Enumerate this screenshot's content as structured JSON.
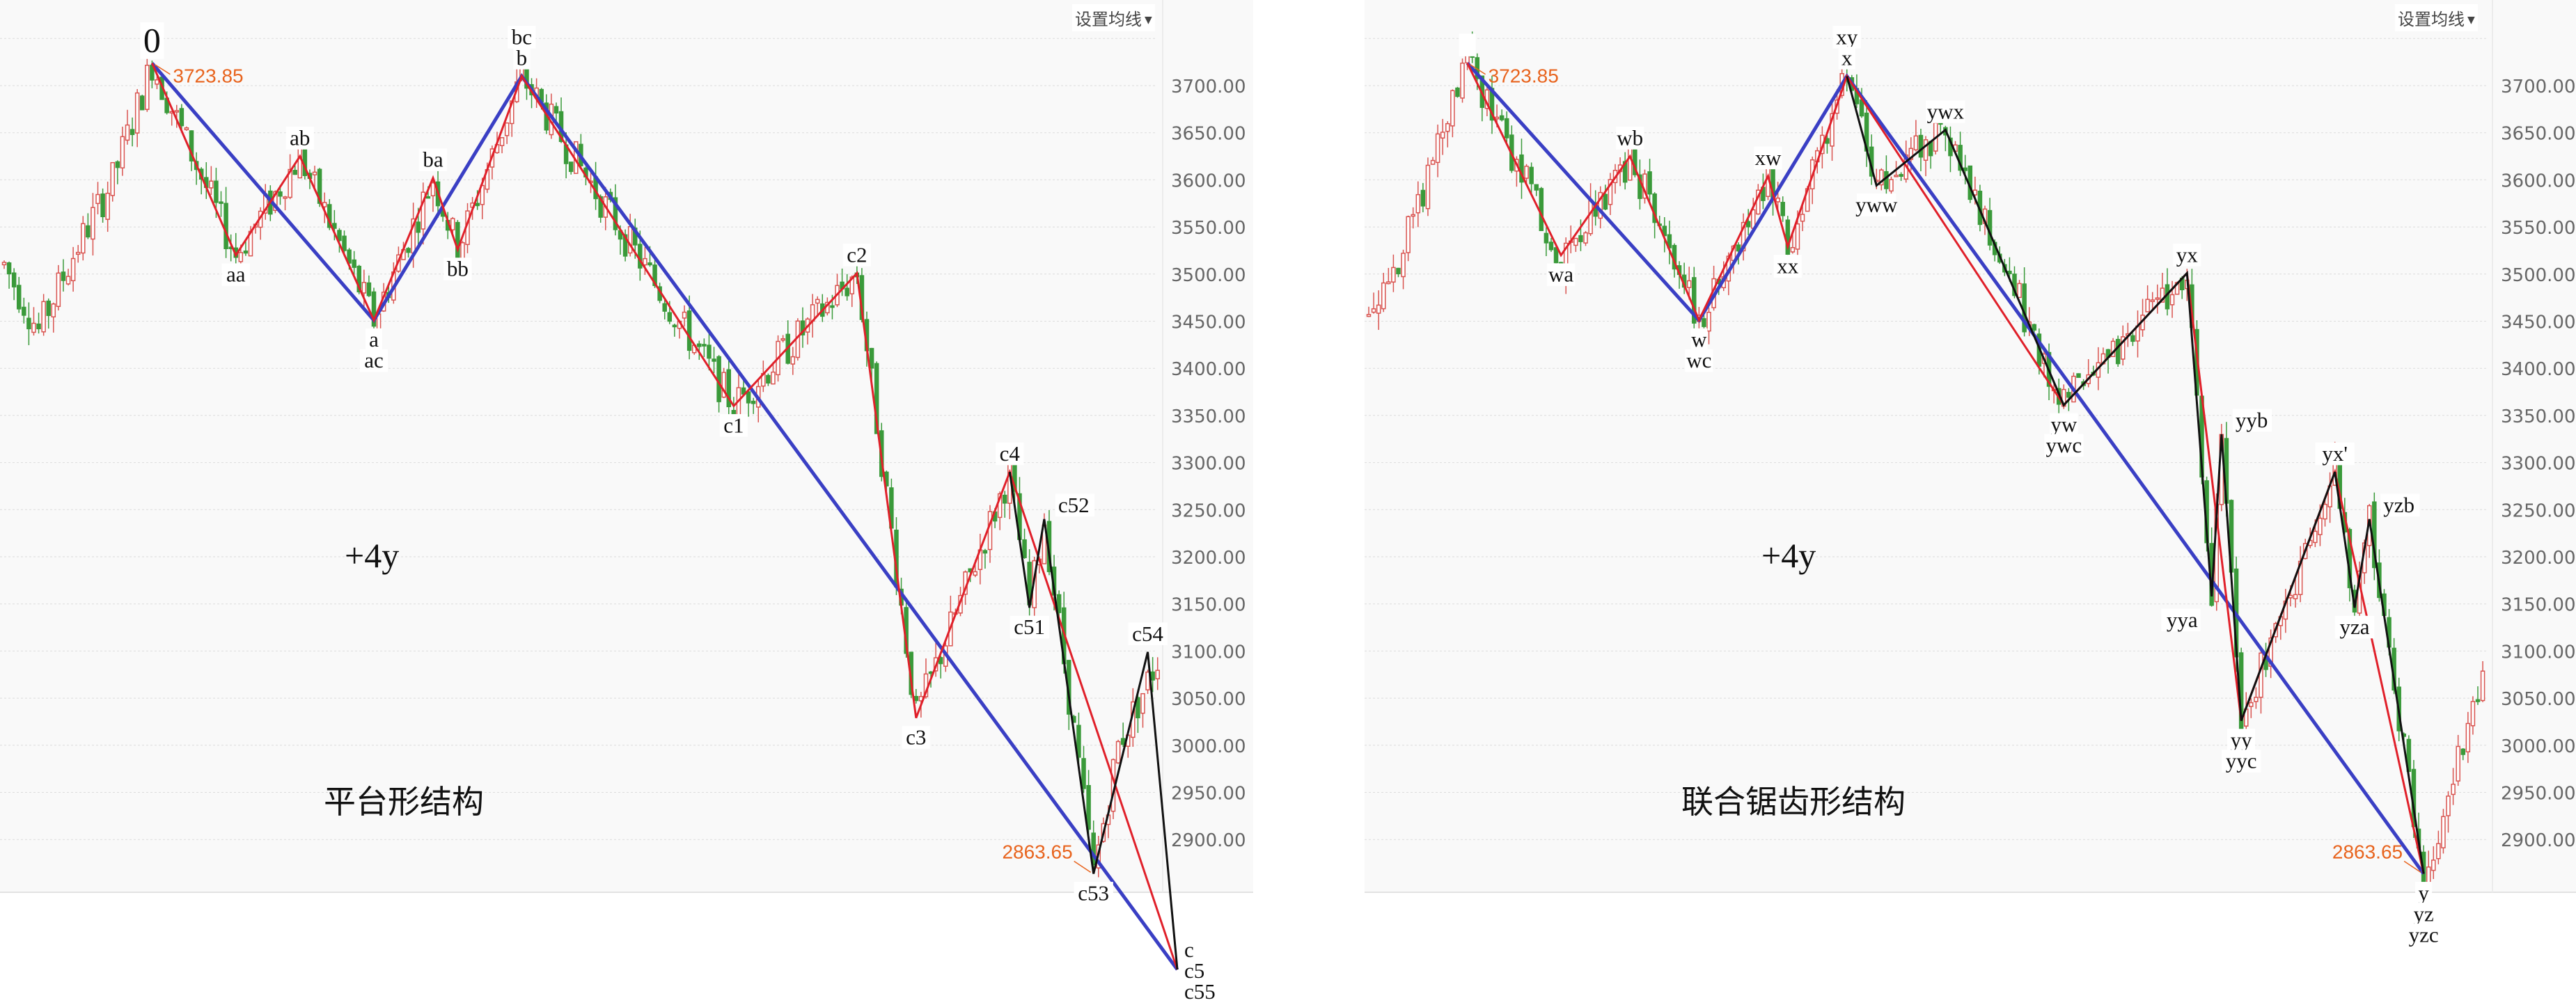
{
  "toolbar": {
    "ma_setting_label": "设置均线",
    "ma_setting_icon": "caret-down-icon"
  },
  "colors": {
    "up_candle": "#d9534f",
    "down_candle": "#3a9a3a",
    "wave_red": "#e0202a",
    "wave_blue": "#3a3fc4",
    "wave_black": "#111111",
    "price_tag": "#e8641e",
    "grid": "#dcdcdc",
    "plot_bg": "#f9f9f9"
  },
  "chart_data": [
    {
      "type": "candlestick",
      "panel": "left",
      "yaxis": {
        "ticks": [
          "3700.00",
          "3650.00",
          "3600.00",
          "3550.00",
          "3500.00",
          "3450.00",
          "3400.00",
          "3350.00",
          "3300.00",
          "3250.00",
          "3200.00",
          "3150.00",
          "3100.00",
          "3050.00",
          "3000.00",
          "2950.00",
          "2900.00"
        ],
        "ylim": [
          2760,
          3760
        ],
        "grid": true
      },
      "price_labels": {
        "high": "3723.85",
        "low": "2863.65"
      },
      "annotations": {
        "tag": "+4y",
        "title": "平台形结构"
      },
      "trend_start": [
        [
          0,
          3510
        ],
        [
          7,
          3440
        ],
        [
          14,
          3520
        ],
        [
          22,
          3600
        ],
        [
          30,
          3723.85
        ]
      ],
      "trend_end": [
        [
          226,
          3000
        ],
        [
          234,
          3090
        ]
      ],
      "pivots": [
        {
          "id": "p0",
          "x": 30,
          "price": 3723.85,
          "labels": [
            "0"
          ],
          "pos": "above"
        },
        {
          "id": "aa",
          "x": 47,
          "price": 3520,
          "labels": [
            "aa"
          ],
          "pos": "below"
        },
        {
          "id": "ab",
          "x": 60,
          "price": 3625,
          "labels": [
            "ab"
          ],
          "pos": "above"
        },
        {
          "id": "a",
          "x": 75,
          "price": 3451,
          "labels": [
            "a",
            "ac"
          ],
          "pos": "below"
        },
        {
          "id": "ba",
          "x": 87,
          "price": 3602,
          "labels": [
            "ba"
          ],
          "pos": "above"
        },
        {
          "id": "bb",
          "x": 92,
          "price": 3526,
          "labels": [
            "bb"
          ],
          "pos": "below"
        },
        {
          "id": "b",
          "x": 105,
          "price": 3710,
          "labels": [
            "bc",
            "b"
          ],
          "pos": "above"
        },
        {
          "id": "c1",
          "x": 148,
          "price": 3360,
          "labels": [
            "c1"
          ],
          "pos": "below"
        },
        {
          "id": "c2",
          "x": 173,
          "price": 3501,
          "labels": [
            "c2"
          ],
          "pos": "above"
        },
        {
          "id": "c3",
          "x": 185,
          "price": 3029,
          "labels": [
            "c3"
          ],
          "pos": "below"
        },
        {
          "id": "c4",
          "x": 204,
          "price": 3290,
          "labels": [
            "c4"
          ],
          "pos": "above"
        },
        {
          "id": "c51",
          "x": 208,
          "price": 3146,
          "labels": [
            "c51"
          ],
          "pos": "below"
        },
        {
          "id": "c52",
          "x": 211,
          "price": 3240,
          "labels": [
            "c52"
          ],
          "pos": "right"
        },
        {
          "id": "c53",
          "x": 221,
          "price": 2863.65,
          "labels": [
            "c53"
          ],
          "pos": "below"
        },
        {
          "id": "c54",
          "x": 232,
          "price": 3099,
          "labels": [
            "c54"
          ],
          "pos": "above"
        },
        {
          "id": "c5",
          "x": 238,
          "price": 2762,
          "labels": [
            "c",
            "c5",
            "c55"
          ],
          "pos": "below"
        }
      ],
      "waves": {
        "red": [
          "p0",
          "aa",
          "ab",
          "a",
          "ba",
          "bb",
          "b",
          "c1",
          "c2",
          "c3",
          "c4",
          "c5"
        ],
        "blue": [
          "p0",
          "a",
          "b",
          "c5"
        ],
        "black": [
          "c4",
          "c51",
          "c52",
          "c53",
          "c54",
          "c5"
        ]
      },
      "candle_path": [
        "p0",
        "aa",
        "ab",
        "a",
        "ba",
        "bb",
        "b",
        "c1",
        "c2",
        "c3",
        "c4",
        "c51",
        "c52",
        "c53"
      ]
    },
    {
      "type": "candlestick",
      "panel": "right",
      "yaxis": {
        "ticks": [
          "3700.00",
          "3650.00",
          "3600.00",
          "3550.00",
          "3500.00",
          "3450.00",
          "3400.00",
          "3350.00",
          "3300.00",
          "3250.00",
          "3200.00",
          "3150.00",
          "3100.00",
          "3050.00",
          "3000.00",
          "2950.00",
          "2900.00"
        ],
        "ylim": [
          2760,
          3760
        ],
        "grid": true
      },
      "price_labels": {
        "high": "3723.85",
        "low": "2863.65"
      },
      "annotations": {
        "tag": "+4y",
        "title": "联合锯齿形结构"
      },
      "trend_start": [
        [
          0,
          3460
        ],
        [
          6,
          3520
        ],
        [
          12,
          3600
        ],
        [
          20,
          3723.85
        ]
      ],
      "trend_end": [
        [
          222,
          3000
        ],
        [
          226,
          3080
        ]
      ],
      "pivots": [
        {
          "id": "p0",
          "x": 20,
          "price": 3723.85,
          "labels": [
            ""
          ],
          "pos": "above"
        },
        {
          "id": "wa",
          "x": 39,
          "price": 3520,
          "labels": [
            "wa"
          ],
          "pos": "below"
        },
        {
          "id": "wb",
          "x": 53,
          "price": 3625,
          "labels": [
            "wb"
          ],
          "pos": "above"
        },
        {
          "id": "w",
          "x": 67,
          "price": 3451,
          "labels": [
            "w",
            "wc"
          ],
          "pos": "below"
        },
        {
          "id": "xw",
          "x": 81,
          "price": 3604,
          "labels": [
            "xw"
          ],
          "pos": "above"
        },
        {
          "id": "xx",
          "x": 85,
          "price": 3529,
          "labels": [
            "xx"
          ],
          "pos": "below"
        },
        {
          "id": "x",
          "x": 97,
          "price": 3710,
          "labels": [
            "xy",
            "x"
          ],
          "pos": "above"
        },
        {
          "id": "yww",
          "x": 103,
          "price": 3594,
          "labels": [
            "yww"
          ],
          "pos": "below"
        },
        {
          "id": "ywx",
          "x": 117,
          "price": 3653,
          "labels": [
            "ywx"
          ],
          "pos": "above"
        },
        {
          "id": "yw",
          "x": 141,
          "price": 3361,
          "labels": [
            "yw",
            "ywc"
          ],
          "pos": "below"
        },
        {
          "id": "yx",
          "x": 166,
          "price": 3501,
          "labels": [
            "yx"
          ],
          "pos": "above"
        },
        {
          "id": "yya",
          "x": 171,
          "price": 3158,
          "labels": [
            "yya"
          ],
          "pos": "left"
        },
        {
          "id": "yyb",
          "x": 173,
          "price": 3330,
          "labels": [
            "yyb"
          ],
          "pos": "right"
        },
        {
          "id": "yy",
          "x": 177,
          "price": 3026,
          "labels": [
            "yy",
            "yyc"
          ],
          "pos": "below"
        },
        {
          "id": "yx2",
          "x": 196,
          "price": 3290,
          "labels": [
            "yx'"
          ],
          "pos": "above"
        },
        {
          "id": "yza",
          "x": 200,
          "price": 3146,
          "labels": [
            "yza"
          ],
          "pos": "below"
        },
        {
          "id": "yzb",
          "x": 203,
          "price": 3240,
          "labels": [
            "yzb"
          ],
          "pos": "right"
        },
        {
          "id": "y",
          "x": 214,
          "price": 2863.65,
          "labels": [
            "y",
            "yz",
            "yzc"
          ],
          "pos": "below"
        }
      ],
      "waves": {
        "red": [
          "p0",
          "wa",
          "wb",
          "w",
          "xw",
          "xx",
          "x",
          "yw",
          "yx",
          "yy",
          "yx2",
          "y"
        ],
        "blue": [
          "p0",
          "w",
          "x",
          "y"
        ],
        "black": [
          "x",
          "yww",
          "ywx",
          "yw",
          "yx",
          "yya",
          "yyb",
          "yy",
          "yx2",
          "yza",
          "yzb",
          "y"
        ]
      },
      "candle_path": [
        "p0",
        "wa",
        "wb",
        "w",
        "xw",
        "xx",
        "x",
        "yww",
        "ywx",
        "yw",
        "yx",
        "yya",
        "yyb",
        "yy",
        "yx2",
        "yza",
        "yzb",
        "y"
      ]
    }
  ]
}
